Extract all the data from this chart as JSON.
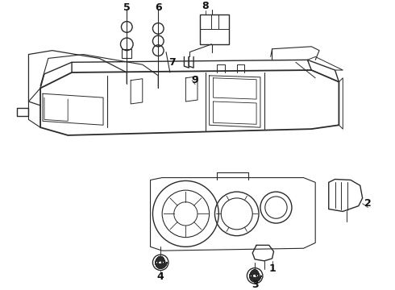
{
  "bg_color": "#ffffff",
  "line_color": "#2a2a2a",
  "lw": 1.0,
  "figsize": [
    4.9,
    3.6
  ],
  "dpi": 100
}
